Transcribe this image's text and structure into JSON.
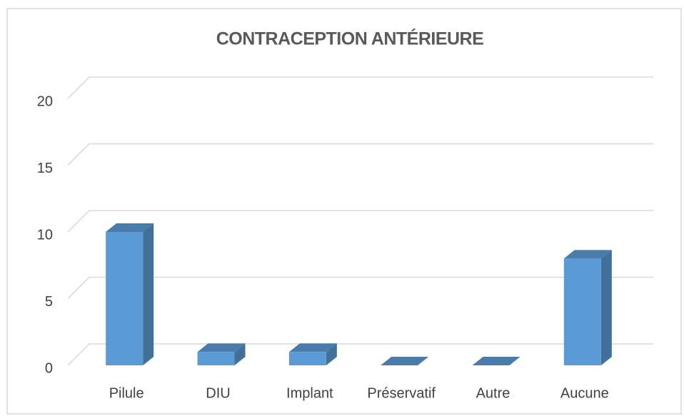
{
  "chart_data": {
    "type": "bar3d",
    "title": "CONTRACEPTION ANTÉRIEURE",
    "categories": [
      "Pilule",
      "DIU",
      "Implant",
      "Préservatif",
      "Autre",
      "Aucune"
    ],
    "values": [
      10,
      1,
      1,
      0,
      0,
      8
    ],
    "color": "#5b9bd5",
    "ylim": [
      0,
      20
    ],
    "yticks": [
      0,
      5,
      10,
      15,
      20
    ],
    "grid": true
  }
}
